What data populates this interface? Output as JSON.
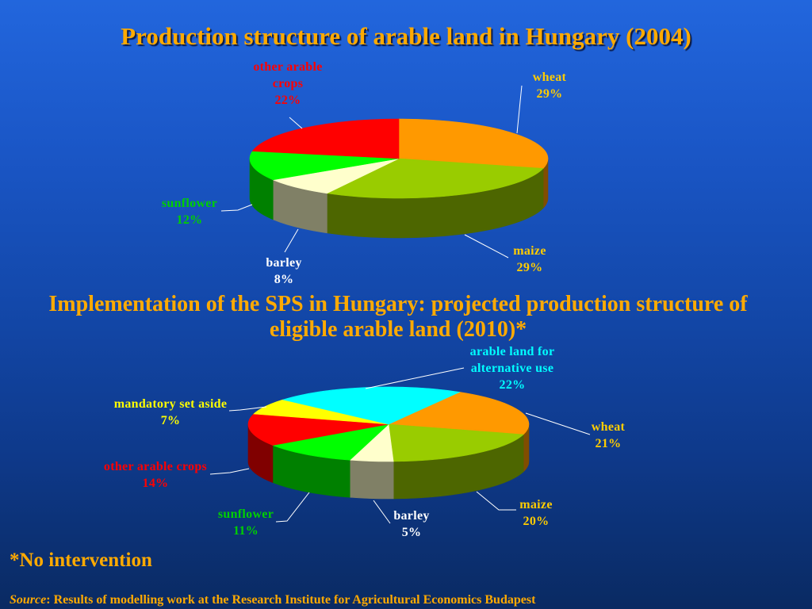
{
  "slide": {
    "accent_color": "#ffaa00",
    "footnote": "*No intervention",
    "source_label": "Source",
    "source_text": ": Results of modelling work at the Research Institute for Agricultural Economics Budapest"
  },
  "chart_data": [
    {
      "type": "pie",
      "view": "3d",
      "title": "Production structure of arable land in Hungary (2004)",
      "unit": "%",
      "slices": [
        {
          "label": "wheat",
          "value": 29,
          "color": "#ff9900",
          "label_color": "#ffcc00"
        },
        {
          "label": "maize",
          "value": 29,
          "color": "#99cc00",
          "label_color": "#ffcc00"
        },
        {
          "label": "barley",
          "value": 8,
          "color": "#ffffcc",
          "label_color": "#ffffff"
        },
        {
          "label": "sunflower",
          "value": 12,
          "color": "#00ff00",
          "label_color": "#00d000"
        },
        {
          "label": "other arable crops",
          "value": 22,
          "color": "#ff0000",
          "label_color": "#ff0000"
        }
      ]
    },
    {
      "type": "pie",
      "view": "3d",
      "title": "Implementation of the SPS in Hungary: projected production structure of eligible arable land (2010)*",
      "unit": "%",
      "slices": [
        {
          "label": "wheat",
          "value": 21,
          "color": "#ff9900",
          "label_color": "#ffcc00"
        },
        {
          "label": "maize",
          "value": 20,
          "color": "#99cc00",
          "label_color": "#ffcc00"
        },
        {
          "label": "barley",
          "value": 5,
          "color": "#ffffcc",
          "label_color": "#ffffff"
        },
        {
          "label": "sunflower",
          "value": 11,
          "color": "#00ff00",
          "label_color": "#00d000"
        },
        {
          "label": "other arable crops",
          "value": 14,
          "color": "#ff0000",
          "label_color": "#ff0000"
        },
        {
          "label": "mandatory set aside",
          "value": 7,
          "color": "#ffff00",
          "label_color": "#ffff00"
        },
        {
          "label": "arable land for alternative use",
          "value": 22,
          "color": "#00ffff",
          "label_color": "#00ffff"
        }
      ]
    }
  ]
}
